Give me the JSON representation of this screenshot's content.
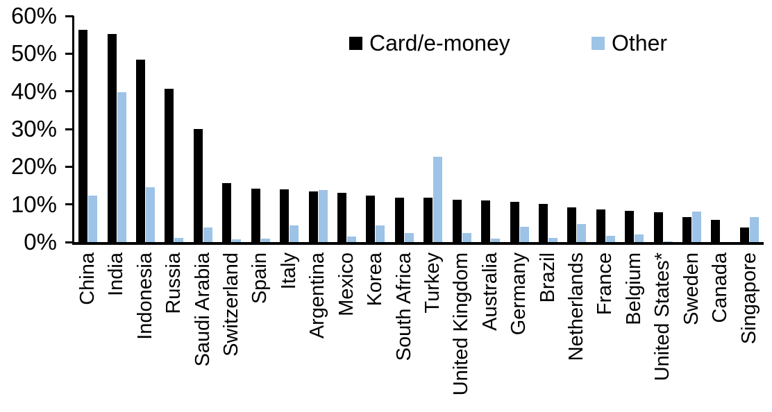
{
  "chart_data": {
    "type": "bar",
    "categories": [
      "China",
      "India",
      "Indonesia",
      "Russia",
      "Saudi Arabia",
      "Switzerland",
      "Spain",
      "Italy",
      "Argentina",
      "Mexico",
      "Korea",
      "South Africa",
      "Turkey",
      "United Kingdom",
      "Australia",
      "Germany",
      "Brazil",
      "Netherlands",
      "France",
      "Belgium",
      "United States*",
      "Sweden",
      "Canada",
      "Singapore"
    ],
    "series": [
      {
        "name": "Card/e-money",
        "color": "#000000",
        "values": [
          56.4,
          55.2,
          48.4,
          40.6,
          30.1,
          15.7,
          14.2,
          14.0,
          13.4,
          13.0,
          12.3,
          11.8,
          11.7,
          11.2,
          11.0,
          10.7,
          10.1,
          9.3,
          8.7,
          8.2,
          7.9,
          6.6,
          5.9,
          3.8
        ]
      },
      {
        "name": "Other",
        "color": "#9DC3E6",
        "values": [
          12.3,
          39.8,
          14.6,
          1.2,
          3.9,
          0.7,
          1.0,
          4.5,
          13.9,
          1.4,
          4.5,
          2.4,
          22.6,
          2.4,
          1.0,
          4.0,
          1.1,
          4.8,
          1.6,
          2.0,
          0.2,
          8.1,
          0,
          6.7
        ]
      }
    ],
    "ylim": [
      0,
      60
    ],
    "ytick_step": 10,
    "ytick_labels": [
      "0%",
      "10%",
      "20%",
      "30%",
      "40%",
      "50%",
      "60%"
    ],
    "xlabel": "",
    "ylabel": "",
    "grid": false,
    "legend_position": "top-center",
    "axis_color": "#000000",
    "background_color": "#FFFFFF"
  },
  "legend": {
    "items": [
      {
        "label": "Card/e-money",
        "color": "#000000"
      },
      {
        "label": "Other",
        "color": "#9DC3E6"
      }
    ]
  }
}
